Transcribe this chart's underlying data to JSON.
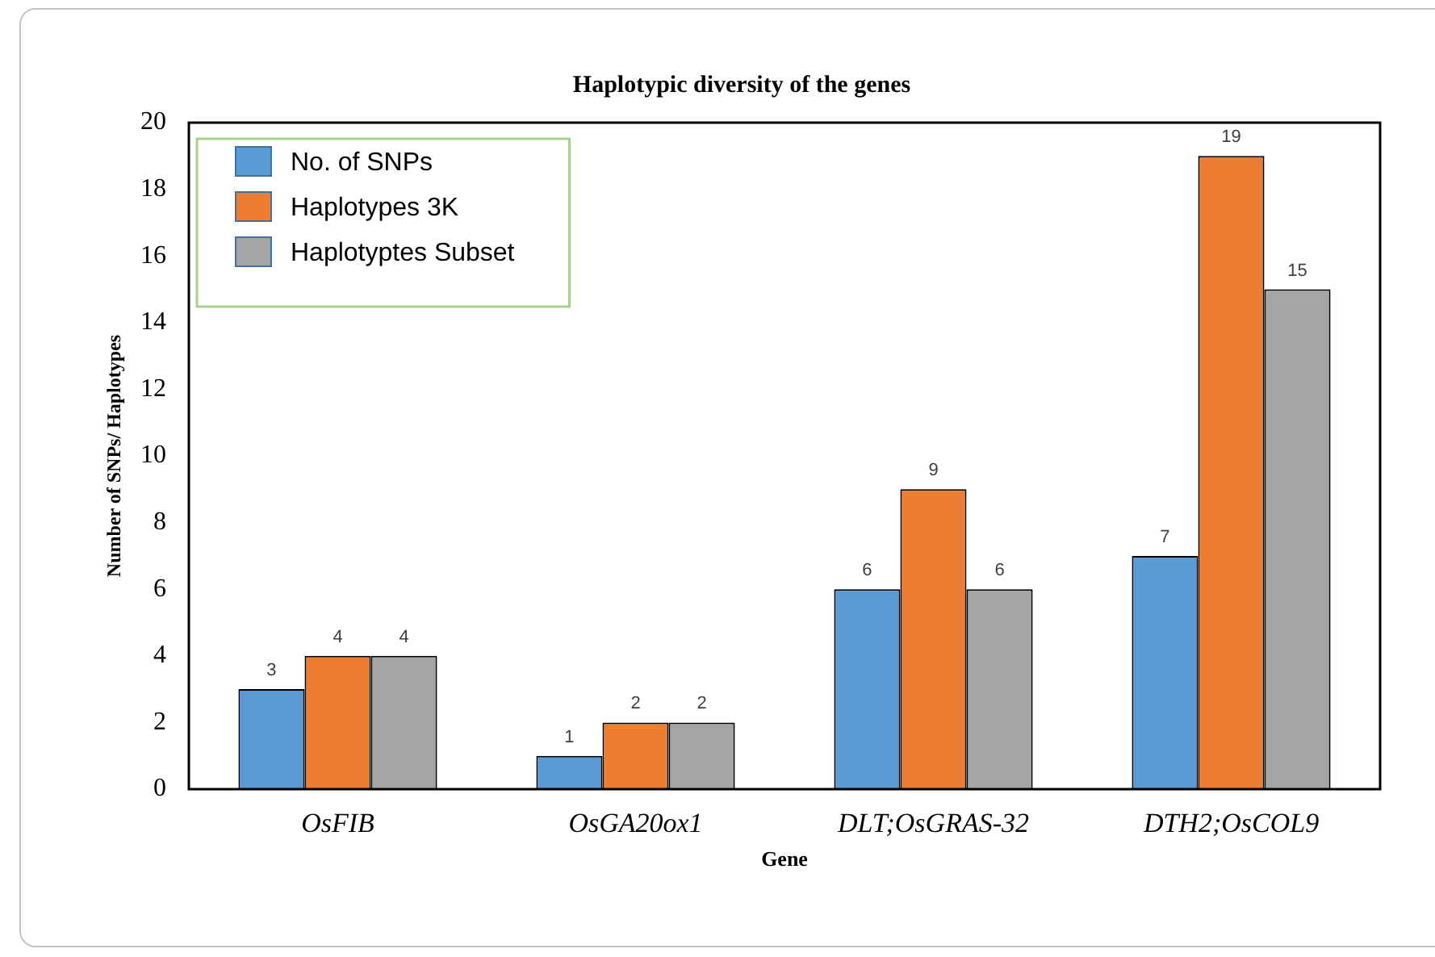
{
  "chart_data": {
    "type": "bar",
    "title": "Haplotypic diversity of the genes",
    "xlabel": "Gene",
    "ylabel": "Number of SNPs/ Haplotypes",
    "categories": [
      "OsFIB",
      "OsGA20ox1",
      "DLT;OsGRAS-32",
      "DTH2;OsCOL9"
    ],
    "series": [
      {
        "name": "No. of SNPs",
        "color": "#5b9bd5",
        "values": [
          3,
          1,
          6,
          7
        ]
      },
      {
        "name": "Haplotypes 3K",
        "color": "#ed7d31",
        "values": [
          4,
          2,
          9,
          19
        ]
      },
      {
        "name": "Haplotyptes Subset",
        "color": "#a5a5a5",
        "values": [
          4,
          2,
          6,
          15
        ]
      }
    ],
    "ylim": [
      0,
      20
    ],
    "yticks": [
      0,
      2,
      4,
      6,
      8,
      10,
      12,
      14,
      16,
      18,
      20
    ],
    "grid": false,
    "legend": "top left",
    "data_labels": true
  }
}
